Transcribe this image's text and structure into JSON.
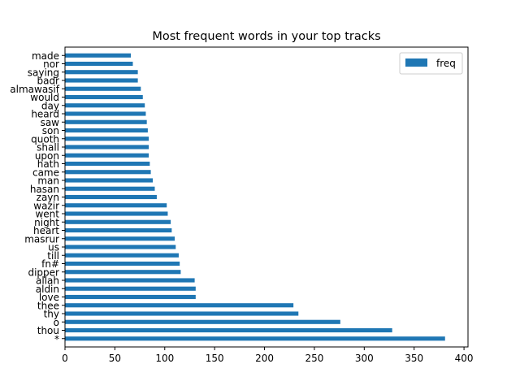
{
  "chart_data": {
    "type": "bar",
    "orientation": "horizontal",
    "title": "Most frequent words in your top tracks",
    "xlabel": "",
    "ylabel": "",
    "xlim": [
      0,
      404
    ],
    "xticks": [
      0,
      50,
      100,
      150,
      200,
      250,
      300,
      350,
      400
    ],
    "grid": false,
    "legend_position": "top-right",
    "bar_color": "#1f77b4",
    "categories": [
      "*",
      "thou",
      "o",
      "thy",
      "thee",
      "love",
      "aldin",
      "allah",
      "dipper",
      "fn#",
      "till",
      "us",
      "masrur",
      "heart",
      "night",
      "went",
      "wazir",
      "zayn",
      "hasan",
      "man",
      "came",
      "hath",
      "upon",
      "shall",
      "quoth",
      "son",
      "saw",
      "heard",
      "day",
      "would",
      "almawasif",
      "badr",
      "saying",
      "nor",
      "made"
    ],
    "series": [
      {
        "name": "freq",
        "values": [
          381,
          328,
          276,
          234,
          229,
          131,
          131,
          130,
          116,
          115,
          114,
          111,
          110,
          107,
          106,
          103,
          102,
          92,
          90,
          88,
          86,
          85,
          84,
          84,
          84,
          83,
          82,
          81,
          80,
          78,
          76,
          73,
          73,
          68,
          66
        ]
      }
    ]
  }
}
